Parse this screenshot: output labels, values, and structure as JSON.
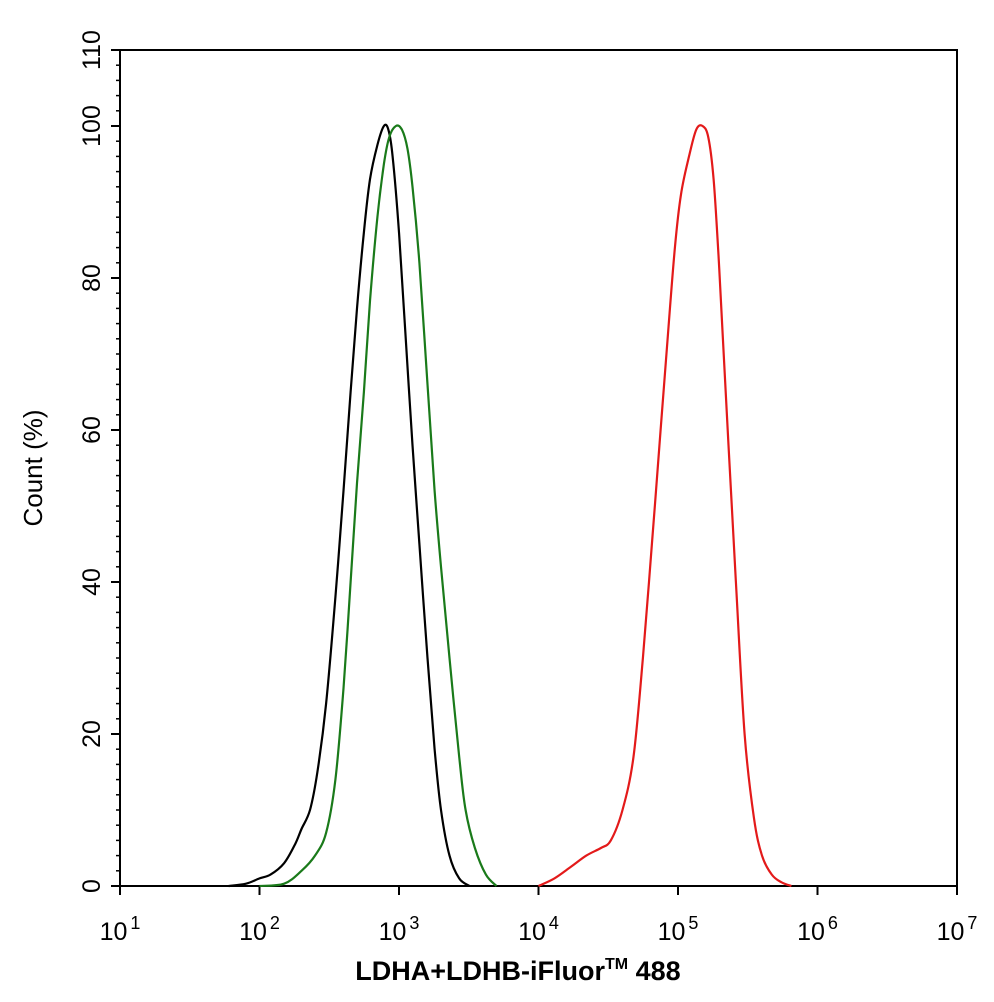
{
  "chart_data": {
    "type": "line",
    "xlabel": {
      "main": "LDHA+LDHB-iFluor",
      "superscript": "TM",
      "suffix": " 488"
    },
    "ylabel": "Count  (%)",
    "xscale": "log",
    "xlim": [
      10,
      10000000
    ],
    "ylim": [
      0,
      110
    ],
    "xticks": [
      {
        "base": "10",
        "exp": "1",
        "value": 10
      },
      {
        "base": "10",
        "exp": "2",
        "value": 100
      },
      {
        "base": "10",
        "exp": "3",
        "value": 1000
      },
      {
        "base": "10",
        "exp": "4",
        "value": 10000
      },
      {
        "base": "10",
        "exp": "5",
        "value": 100000
      },
      {
        "base": "10",
        "exp": "6",
        "value": 1000000
      },
      {
        "base": "10",
        "exp": "7",
        "value": 10000000
      }
    ],
    "yticks": [
      {
        "label": "0",
        "value": 0
      },
      {
        "label": "20",
        "value": 20
      },
      {
        "label": "40",
        "value": 40
      },
      {
        "label": "60",
        "value": 60
      },
      {
        "label": "80",
        "value": 80
      },
      {
        "label": "100",
        "value": 100
      },
      {
        "label": "110",
        "value": 110
      }
    ],
    "grid": false,
    "legend": "none",
    "series": [
      {
        "color": "#000000",
        "points": [
          [
            60,
            0
          ],
          [
            80,
            0.3
          ],
          [
            100,
            1
          ],
          [
            120,
            1.5
          ],
          [
            150,
            3
          ],
          [
            180,
            5.5
          ],
          [
            200,
            7.5
          ],
          [
            230,
            10
          ],
          [
            260,
            15
          ],
          [
            300,
            24
          ],
          [
            350,
            38
          ],
          [
            400,
            52
          ],
          [
            450,
            65
          ],
          [
            500,
            76
          ],
          [
            560,
            86
          ],
          [
            620,
            93
          ],
          [
            700,
            97.5
          ],
          [
            780,
            100
          ],
          [
            840,
            99.5
          ],
          [
            900,
            96
          ],
          [
            1000,
            86
          ],
          [
            1100,
            74
          ],
          [
            1250,
            58
          ],
          [
            1400,
            45
          ],
          [
            1600,
            30
          ],
          [
            1800,
            18
          ],
          [
            2000,
            10
          ],
          [
            2300,
            4
          ],
          [
            2700,
            1
          ],
          [
            3200,
            0
          ]
        ]
      },
      {
        "color": "#1a7a1a",
        "points": [
          [
            100,
            0
          ],
          [
            150,
            0.3
          ],
          [
            200,
            2
          ],
          [
            250,
            4
          ],
          [
            300,
            7
          ],
          [
            350,
            14
          ],
          [
            400,
            26
          ],
          [
            450,
            40
          ],
          [
            500,
            53
          ],
          [
            560,
            65
          ],
          [
            620,
            77
          ],
          [
            700,
            88
          ],
          [
            780,
            95
          ],
          [
            850,
            98.5
          ],
          [
            950,
            100
          ],
          [
            1050,
            99.5
          ],
          [
            1150,
            97
          ],
          [
            1250,
            92
          ],
          [
            1400,
            82
          ],
          [
            1600,
            66
          ],
          [
            1800,
            52
          ],
          [
            2000,
            42
          ],
          [
            2300,
            30
          ],
          [
            2700,
            17
          ],
          [
            3000,
            10
          ],
          [
            3500,
            5
          ],
          [
            4200,
            1.5
          ],
          [
            5000,
            0
          ]
        ]
      },
      {
        "color": "#e31a1a",
        "points": [
          [
            10000,
            0
          ],
          [
            13000,
            1
          ],
          [
            17000,
            2.5
          ],
          [
            22000,
            4
          ],
          [
            28000,
            5
          ],
          [
            33000,
            6
          ],
          [
            40000,
            10
          ],
          [
            48000,
            17
          ],
          [
            56000,
            30
          ],
          [
            65000,
            45
          ],
          [
            75000,
            60
          ],
          [
            85000,
            73
          ],
          [
            95000,
            84
          ],
          [
            105000,
            91
          ],
          [
            120000,
            96
          ],
          [
            135000,
            99.5
          ],
          [
            150000,
            100
          ],
          [
            165000,
            98.5
          ],
          [
            180000,
            93
          ],
          [
            195000,
            83
          ],
          [
            210000,
            72
          ],
          [
            230000,
            58
          ],
          [
            260000,
            40
          ],
          [
            300000,
            20
          ],
          [
            350000,
            9
          ],
          [
            400000,
            4
          ],
          [
            470000,
            1.5
          ],
          [
            550000,
            0.5
          ],
          [
            650000,
            0
          ]
        ]
      }
    ]
  }
}
